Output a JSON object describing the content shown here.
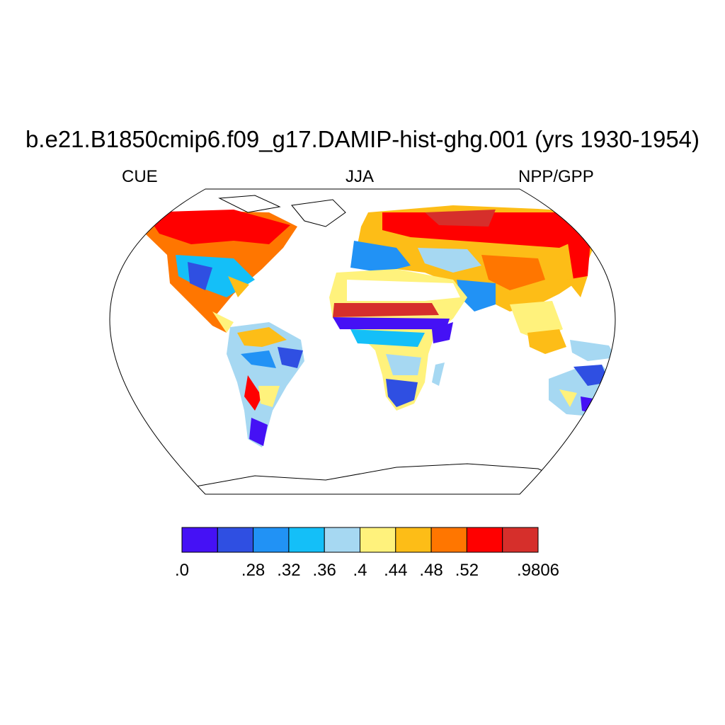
{
  "title": "b.e21.B1850cmip6.f09_g17.DAMIP-hist-ghg.001 (yrs 1930-1954)",
  "left_string": "CUE",
  "center_string": "JJA",
  "right_string": "NPP/GPP",
  "colorbar": {
    "colors": [
      "#4511f5",
      "#2f4fe2",
      "#2192f5",
      "#14bff8",
      "#a6d8f2",
      "#fff27c",
      "#fdbd17",
      "#ff7600",
      "#ff0000",
      "#d62f2b"
    ],
    "labels": [
      ".0",
      "",
      ".28",
      ".32",
      ".36",
      ".4",
      ".44",
      ".48",
      ".52",
      "",
      ".9806"
    ]
  },
  "map": {
    "projection": "Robinson",
    "ocean_color": "#ffffff",
    "outline_color": "#000000"
  }
}
